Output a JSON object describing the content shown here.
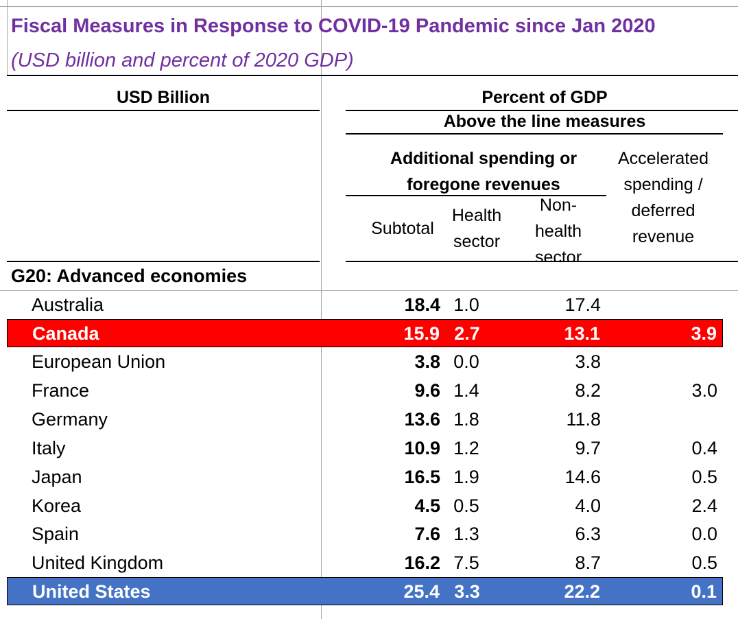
{
  "title": "Fiscal Measures in Response to COVID-19 Pandemic since Jan 2020",
  "subtitle": "(USD billion and percent of 2020 GDP)",
  "headers": {
    "usd_billion": "USD Billion",
    "percent_of_gdp": "Percent of GDP",
    "above_the_line": "Above the line measures",
    "additional_spending_line1": "Additional spending or",
    "additional_spending_line2": "foregone revenues",
    "accelerated_line1": "Accelerated",
    "accelerated_line2": "spending /",
    "accelerated_line3": "deferred",
    "accelerated_line4": "revenue",
    "subtotal": "Subtotal",
    "health_line1": "Health",
    "health_line2": "sector",
    "nonhealth_line1": "Non-",
    "nonhealth_line2": "health",
    "nonhealth_line3": "sector"
  },
  "section_label": "G20: Advanced economies",
  "rows": [
    {
      "country": "Australia",
      "subtotal": "18.4",
      "health": "1.0",
      "nonhealth": "17.4",
      "accelerated": ""
    },
    {
      "country": "Canada",
      "subtotal": "15.9",
      "health": "2.7",
      "nonhealth": "13.1",
      "accelerated": "3.9"
    },
    {
      "country": "European Union",
      "subtotal": "3.8",
      "health": "0.0",
      "nonhealth": "3.8",
      "accelerated": ""
    },
    {
      "country": "France",
      "subtotal": "9.6",
      "health": "1.4",
      "nonhealth": "8.2",
      "accelerated": "3.0"
    },
    {
      "country": "Germany",
      "subtotal": "13.6",
      "health": "1.8",
      "nonhealth": "11.8",
      "accelerated": ""
    },
    {
      "country": "Italy",
      "subtotal": "10.9",
      "health": "1.2",
      "nonhealth": "9.7",
      "accelerated": "0.4"
    },
    {
      "country": "Japan",
      "subtotal": "16.5",
      "health": "1.9",
      "nonhealth": "14.6",
      "accelerated": "0.5"
    },
    {
      "country": "Korea",
      "subtotal": "4.5",
      "health": "0.5",
      "nonhealth": "4.0",
      "accelerated": "2.4"
    },
    {
      "country": "Spain",
      "subtotal": "7.6",
      "health": "1.3",
      "nonhealth": "6.3",
      "accelerated": "0.0"
    },
    {
      "country": "United Kingdom",
      "subtotal": "16.2",
      "health": "7.5",
      "nonhealth": "8.7",
      "accelerated": "0.5"
    },
    {
      "country": "United States",
      "subtotal": "25.4",
      "health": "3.3",
      "nonhealth": "22.2",
      "accelerated": "0.1"
    }
  ],
  "highlight_colors": {
    "canada": "#ff0000",
    "united_states": "#4472c4",
    "title": "#7030a0"
  }
}
